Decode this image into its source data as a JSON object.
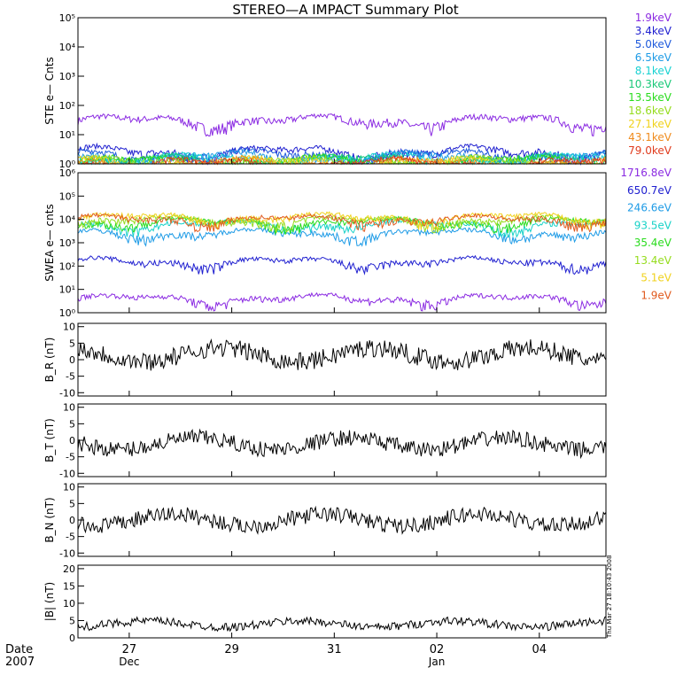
{
  "title": "STEREO—A IMPACT Summary Plot",
  "timestamp_text": "Thu Mar 27 18:10:43 2008",
  "x_axis": {
    "row1_label": "Date",
    "row2_label": "2007",
    "range_days": [
      0,
      10.3
    ],
    "ticks": [
      {
        "day": 1.0,
        "label": "27",
        "sub": "Dec"
      },
      {
        "day": 3.0,
        "label": "29",
        "sub": ""
      },
      {
        "day": 5.0,
        "label": "31",
        "sub": ""
      },
      {
        "day": 7.0,
        "label": "02",
        "sub": "Jan"
      },
      {
        "day": 9.0,
        "label": "04",
        "sub": ""
      }
    ]
  },
  "chart_data": [
    {
      "type": "line",
      "ylabel": "STE e— Cnts",
      "yscale": "log",
      "ylim": [
        1,
        100000
      ],
      "ytick_labels": [
        "10⁰",
        "10¹",
        "10²",
        "10³",
        "10⁴",
        "10⁵"
      ],
      "series": [
        {
          "name": "1.9keV",
          "color": "#8b2be2",
          "level": 30
        },
        {
          "name": "3.4keV",
          "color": "#2020d0",
          "level": 2.6
        },
        {
          "name": "5.0keV",
          "color": "#1e5adc",
          "level": 2.0
        },
        {
          "name": "6.5keV",
          "color": "#1e9be6",
          "level": 1.7
        },
        {
          "name": "8.1keV",
          "color": "#19d2d2",
          "level": 1.5
        },
        {
          "name": "10.3keV",
          "color": "#19c878",
          "level": 1.35
        },
        {
          "name": "13.5keV",
          "color": "#2adc1e",
          "level": 1.25
        },
        {
          "name": "18.6keV",
          "color": "#96dc1e",
          "level": 1.15
        },
        {
          "name": "27.1keV",
          "color": "#f0d21e",
          "level": 1.1
        },
        {
          "name": "43.1keV",
          "color": "#f08c1e",
          "level": 1.05
        },
        {
          "name": "79.0keV",
          "color": "#e03c1e",
          "level": 1.02
        }
      ]
    },
    {
      "type": "line",
      "ylabel": "SWEA e— cnts",
      "yscale": "log",
      "ylim": [
        1,
        1000000
      ],
      "ytick_labels": [
        "10⁰",
        "10¹",
        "10²",
        "10³",
        "10⁴",
        "10⁵",
        "10⁶"
      ],
      "series": [
        {
          "name": "1716.8eV",
          "color": "#8b2be2",
          "level": 4
        },
        {
          "name": "650.7eV",
          "color": "#2020d0",
          "level": 150
        },
        {
          "name": "246.6eV",
          "color": "#1e9be6",
          "level": 2500
        },
        {
          "name": "93.5eV",
          "color": "#19d2c8",
          "level": 6000
        },
        {
          "name": "35.4eV",
          "color": "#2adc1e",
          "level": 7500
        },
        {
          "name": "13.4eV",
          "color": "#96dc1e",
          "level": 9000
        },
        {
          "name": "5.1eV",
          "color": "#f0d21e",
          "level": 12000
        },
        {
          "name": "1.9eV",
          "color": "#e05a1e",
          "level": 10000
        }
      ]
    },
    {
      "type": "line",
      "ylabel": "B_R (nT)",
      "ylim": [
        -11,
        11
      ],
      "yticks": [
        -10,
        -5,
        0,
        5,
        10
      ],
      "series": [
        {
          "color": "#000000",
          "level": 1.5,
          "amplitude": 3.5
        }
      ]
    },
    {
      "type": "line",
      "ylabel": "B_T (nT)",
      "ylim": [
        -11,
        11
      ],
      "yticks": [
        -10,
        -5,
        0,
        5,
        10
      ],
      "series": [
        {
          "color": "#000000",
          "level": -1,
          "amplitude": 3
        }
      ]
    },
    {
      "type": "line",
      "ylabel": "B_N (nT)",
      "ylim": [
        -11,
        11
      ],
      "yticks": [
        -10,
        -5,
        0,
        5,
        10
      ],
      "series": [
        {
          "color": "#000000",
          "level": 0,
          "amplitude": 3
        }
      ]
    },
    {
      "type": "line",
      "ylabel": "|B| (nT)",
      "ylim": [
        0,
        21
      ],
      "yticks": [
        0,
        5,
        10,
        15,
        20
      ],
      "series": [
        {
          "color": "#000000",
          "level": 4,
          "amplitude": 1.5
        }
      ]
    }
  ]
}
